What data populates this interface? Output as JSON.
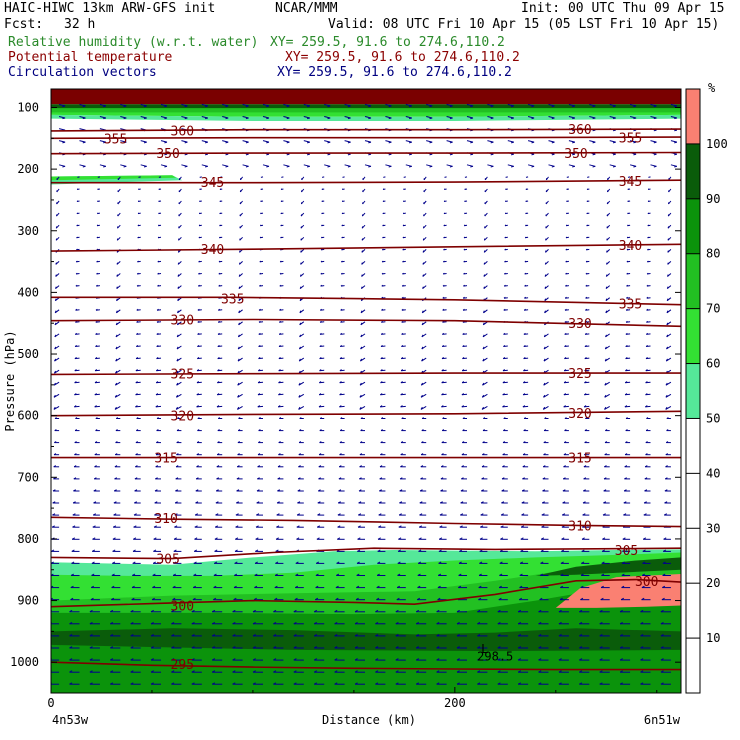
{
  "header": {
    "model": "HAIC-HIWC 13km ARW-GFS init",
    "org": "NCAR/MMM",
    "init": "Init: 00 UTC Thu 09 Apr 15",
    "fcst_label": "Fcst:",
    "fcst_value": "32 h",
    "valid": "Valid: 08 UTC Fri 10 Apr 15 (05 LST Fri 10 Apr 15)",
    "fields": [
      {
        "name": "Relative humidity (w.r.t. water)",
        "xy": "XY= 259.5, 91.6 to 274.6,110.2",
        "color": "#2a8a2a"
      },
      {
        "name": "Potential temperature",
        "xy": "XY= 259.5, 91.6 to 274.6,110.2",
        "color": "#8b0000"
      },
      {
        "name": "Circulation vectors",
        "xy": "XY= 259.5, 91.6 to 274.6,110.2",
        "color": "#000080"
      }
    ]
  },
  "chart_data": {
    "type": "cross-section",
    "xlabel": "Distance (km)",
    "ylabel": "Pressure (hPa)",
    "xlim": [
      0,
      312
    ],
    "ylim": [
      1050,
      70
    ],
    "x_ticks": [
      0,
      200
    ],
    "y_ticks": [
      100,
      200,
      300,
      400,
      500,
      600,
      700,
      800,
      900,
      1000
    ],
    "x_start_label": "4n53w",
    "x_end_label": "6n51w",
    "colorbar": {
      "unit": "%",
      "levels": [
        10,
        20,
        30,
        40,
        50,
        60,
        70,
        80,
        90,
        100
      ],
      "colors": [
        "#ffffff",
        "#ffffff",
        "#ffffff",
        "#ffffff",
        "#ffffff",
        "#55e899",
        "#33e033",
        "#22c022",
        "#0b930b",
        "#0a5c0a",
        "#fa8072"
      ]
    },
    "theta_contours": [
      {
        "label": "295",
        "points": [
          [
            0,
            1000
          ],
          [
            50,
            1005
          ],
          [
            100,
            1008
          ],
          [
            150,
            1010
          ],
          [
            200,
            1011
          ],
          [
            250,
            1012
          ],
          [
            312,
            1012
          ]
        ],
        "labels_at": [
          [
            65,
            1003
          ]
        ]
      },
      {
        "label": "300",
        "points": [
          [
            0,
            910
          ],
          [
            50,
            905
          ],
          [
            100,
            900
          ],
          [
            150,
            903
          ],
          [
            180,
            906
          ],
          [
            220,
            890
          ],
          [
            260,
            868
          ],
          [
            290,
            866
          ],
          [
            312,
            870
          ]
        ],
        "labels_at": [
          [
            65,
            908
          ],
          [
            295,
            868
          ]
        ]
      },
      {
        "label": "305",
        "points": [
          [
            0,
            830
          ],
          [
            60,
            832
          ],
          [
            110,
            822
          ],
          [
            160,
            815
          ],
          [
            220,
            817
          ],
          [
            270,
            816
          ],
          [
            312,
            815
          ]
        ],
        "labels_at": [
          [
            58,
            832
          ],
          [
            285,
            818
          ]
        ]
      },
      {
        "label": "310",
        "points": [
          [
            0,
            765
          ],
          [
            60,
            768
          ],
          [
            120,
            770
          ],
          [
            200,
            775
          ],
          [
            260,
            778
          ],
          [
            312,
            780
          ]
        ],
        "labels_at": [
          [
            57,
            766
          ],
          [
            262,
            778
          ]
        ]
      },
      {
        "label": "315",
        "points": [
          [
            0,
            668
          ],
          [
            100,
            668
          ],
          [
            200,
            668
          ],
          [
            312,
            668
          ]
        ],
        "labels_at": [
          [
            57,
            668
          ],
          [
            262,
            668
          ]
        ]
      },
      {
        "label": "320",
        "points": [
          [
            0,
            600
          ],
          [
            100,
            598
          ],
          [
            200,
            597
          ],
          [
            312,
            593
          ]
        ],
        "labels_at": [
          [
            65,
            600
          ],
          [
            262,
            596
          ]
        ]
      },
      {
        "label": "325",
        "points": [
          [
            0,
            533
          ],
          [
            100,
            532
          ],
          [
            200,
            531
          ],
          [
            312,
            531
          ]
        ],
        "labels_at": [
          [
            65,
            532
          ],
          [
            262,
            531
          ]
        ]
      },
      {
        "label": "330",
        "points": [
          [
            0,
            446
          ],
          [
            100,
            444
          ],
          [
            200,
            446
          ],
          [
            312,
            455
          ]
        ],
        "labels_at": [
          [
            65,
            444
          ],
          [
            262,
            450
          ]
        ]
      },
      {
        "label": "335",
        "points": [
          [
            0,
            408
          ],
          [
            90,
            408
          ],
          [
            150,
            410
          ],
          [
            200,
            412
          ],
          [
            312,
            420
          ]
        ],
        "labels_at": [
          [
            90,
            410
          ],
          [
            287,
            418
          ]
        ]
      },
      {
        "label": "340",
        "points": [
          [
            0,
            333
          ],
          [
            100,
            330
          ],
          [
            200,
            326
          ],
          [
            312,
            322
          ]
        ],
        "labels_at": [
          [
            80,
            330
          ],
          [
            287,
            323
          ]
        ]
      },
      {
        "label": "345",
        "points": [
          [
            0,
            222
          ],
          [
            100,
            222
          ],
          [
            200,
            221
          ],
          [
            312,
            218
          ]
        ],
        "labels_at": [
          [
            80,
            221
          ],
          [
            287,
            219
          ]
        ]
      },
      {
        "label": "350",
        "points": [
          [
            0,
            175
          ],
          [
            100,
            174
          ],
          [
            200,
            174
          ],
          [
            312,
            173
          ]
        ],
        "labels_at": [
          [
            58,
            174
          ],
          [
            260,
            174
          ]
        ]
      },
      {
        "label": "355",
        "points": [
          [
            0,
            150
          ],
          [
            100,
            149
          ],
          [
            200,
            149
          ],
          [
            312,
            148
          ]
        ],
        "labels_at": [
          [
            32,
            150
          ],
          [
            287,
            149
          ]
        ]
      },
      {
        "label": "360",
        "points": [
          [
            0,
            138
          ],
          [
            100,
            136
          ],
          [
            200,
            136
          ],
          [
            312,
            135
          ]
        ],
        "labels_at": [
          [
            65,
            137
          ],
          [
            262,
            135
          ]
        ]
      }
    ],
    "annotations": [
      {
        "text": "L",
        "x": 213,
        "y": 985
      },
      {
        "text": "298.5",
        "x": 220,
        "y": 997
      }
    ]
  }
}
